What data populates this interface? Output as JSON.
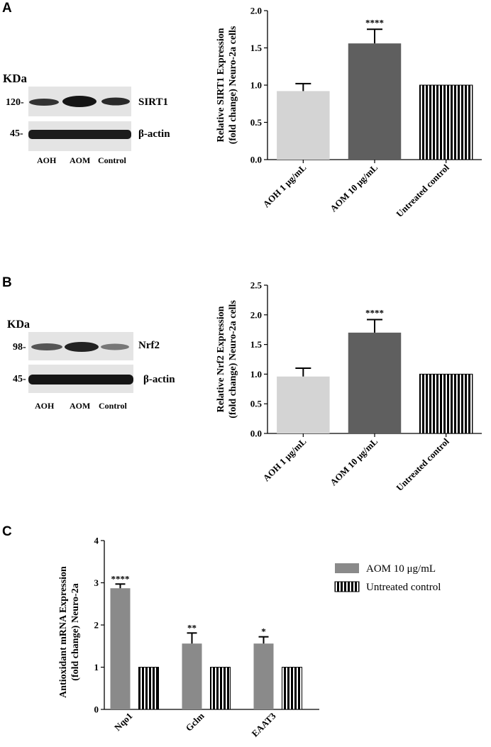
{
  "panels": {
    "A": {
      "letter": "A",
      "blot": {
        "kda_label": "KDa",
        "bands": [
          {
            "marker": "120-",
            "protein": "SIRT1"
          },
          {
            "marker": "45-",
            "protein": "β-actin"
          }
        ],
        "lanes": [
          "AOH",
          "AOM",
          "Control"
        ]
      }
    },
    "B": {
      "letter": "B",
      "blot": {
        "kda_label": "KDa",
        "bands": [
          {
            "marker": "98-",
            "protein": "Nrf2"
          },
          {
            "marker": "45-",
            "protein": "β-actin"
          }
        ],
        "lanes": [
          "AOH",
          "AOM",
          "Control"
        ]
      }
    },
    "C": {
      "letter": "C"
    }
  },
  "chart_data": [
    {
      "id": "A",
      "type": "bar",
      "categories": [
        "AOH 1 μg/mL",
        "AOM 10 μg/mL",
        "Untreated control"
      ],
      "values": [
        0.92,
        1.56,
        1.0
      ],
      "errors": [
        0.1,
        0.19,
        0
      ],
      "significance": [
        "",
        "****",
        ""
      ],
      "ylabel_line1": "Relative SIRT1 Expression",
      "ylabel_line2": "(fold change) Neuro-2a cells",
      "ylim": [
        0,
        2.0
      ],
      "yticks": [
        "0.0",
        "0.5",
        "1.0",
        "1.5",
        "2.0"
      ],
      "bar_styles": [
        "light",
        "dark",
        "hatched"
      ],
      "colors": {
        "light": "#d4d4d4",
        "dark": "#5f5f5f",
        "hatched": "#000000"
      }
    },
    {
      "id": "B",
      "type": "bar",
      "categories": [
        "AOH 1 μg/mL",
        "AOM 10 μg/mL",
        "Untreated control"
      ],
      "values": [
        0.96,
        1.7,
        1.0
      ],
      "errors": [
        0.14,
        0.22,
        0
      ],
      "significance": [
        "",
        "****",
        ""
      ],
      "ylabel_line1": "Relative Nrf2 Expression",
      "ylabel_line2": "(fold change) Neuro-2a cells",
      "ylim": [
        0,
        2.5
      ],
      "yticks": [
        "0.0",
        "0.5",
        "1.0",
        "1.5",
        "2.0",
        "2.5"
      ],
      "bar_styles": [
        "light",
        "dark",
        "hatched"
      ],
      "colors": {
        "light": "#d4d4d4",
        "dark": "#5f5f5f",
        "hatched": "#000000"
      }
    },
    {
      "id": "C",
      "type": "bar",
      "categories": [
        "Nqo1",
        "Gclm",
        "EAAT3"
      ],
      "ylabel_line1": "Antioxidant mRNA Expression",
      "ylabel_line2": "(fold change) Neuro-2a",
      "ylim": [
        0,
        4
      ],
      "yticks": [
        "0",
        "1",
        "2",
        "3",
        "4"
      ],
      "series": [
        {
          "name": "AOM 10 μg/mL",
          "values": [
            2.87,
            1.56,
            1.56
          ],
          "errors": [
            0.1,
            0.25,
            0.16
          ],
          "significance": [
            "****",
            "**",
            "*"
          ],
          "style": "gray",
          "color": "#8a8a8a"
        },
        {
          "name": "Untreated control",
          "values": [
            1.0,
            1.0,
            1.0
          ],
          "errors": [
            0,
            0,
            0
          ],
          "significance": [
            "",
            "",
            ""
          ],
          "style": "hatched",
          "color": "#000000"
        }
      ],
      "legend_position": "top-right"
    }
  ]
}
